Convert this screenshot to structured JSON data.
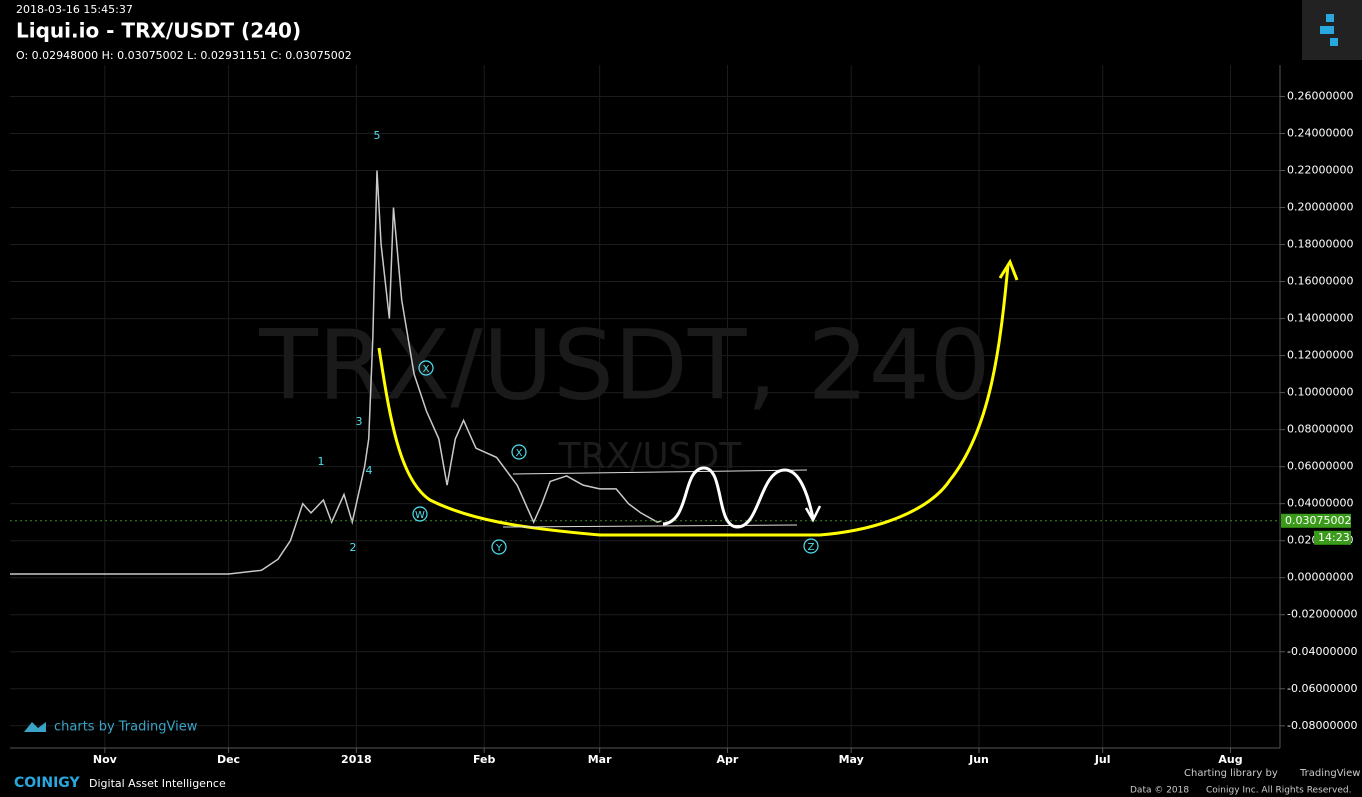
{
  "header": {
    "timestamp": "2018-03-16 15:45:37",
    "title": "Liqui.io - TRX/USDT (240)",
    "ohlc": "O: 0.02948000 H: 0.03075002 L: 0.02931151 C: 0.03075002"
  },
  "watermark": {
    "main": "TRX/USDT, 240",
    "sub": "TRX/USDT"
  },
  "chart_data": {
    "type": "line",
    "x": [
      -23,
      -10,
      0,
      10,
      20,
      30,
      38,
      42,
      45,
      48,
      50,
      53,
      55,
      58,
      60,
      62,
      63,
      64,
      65,
      66,
      67,
      68,
      69,
      70,
      72,
      75,
      78,
      81,
      83,
      85,
      87,
      90,
      95,
      100,
      104,
      106,
      108,
      112,
      116,
      120,
      124,
      127,
      130,
      134,
      135
    ],
    "series": [
      {
        "name": "TRX/USDT",
        "color": "#c9c9c9",
        "values": [
          0.002,
          0.002,
          0.002,
          0.002,
          0.002,
          0.002,
          0.004,
          0.01,
          0.02,
          0.04,
          0.035,
          0.042,
          0.03,
          0.045,
          0.03,
          0.05,
          0.06,
          0.075,
          0.13,
          0.22,
          0.18,
          0.16,
          0.14,
          0.2,
          0.15,
          0.11,
          0.09,
          0.075,
          0.05,
          0.075,
          0.085,
          0.07,
          0.065,
          0.05,
          0.03,
          0.04,
          0.052,
          0.055,
          0.05,
          0.048,
          0.048,
          0.04,
          0.035,
          0.03,
          0.03075002
        ]
      }
    ],
    "xlim": [
      -23,
      285
    ],
    "xticks": [
      {
        "value": 0,
        "label": "Nov"
      },
      {
        "value": 30,
        "label": "Dec"
      },
      {
        "value": 61,
        "label": "2018"
      },
      {
        "value": 92,
        "label": "Feb"
      },
      {
        "value": 120,
        "label": "Mar"
      },
      {
        "value": 151,
        "label": "Apr"
      },
      {
        "value": 181,
        "label": "May"
      },
      {
        "value": 212,
        "label": "Jun"
      },
      {
        "value": 242,
        "label": "Jul"
      },
      {
        "value": 273,
        "label": "Aug"
      }
    ],
    "ylim": [
      -0.092,
      0.277
    ],
    "yticks": [
      {
        "value": -0.08,
        "label": "-0.08000000"
      },
      {
        "value": -0.06,
        "label": "-0.06000000"
      },
      {
        "value": -0.04,
        "label": "-0.04000000"
      },
      {
        "value": -0.02,
        "label": "-0.02000000"
      },
      {
        "value": 0,
        "label": "0.00000000"
      },
      {
        "value": 0.02,
        "label": "0.02000000"
      },
      {
        "value": 0.04,
        "label": "0.04000000"
      },
      {
        "value": 0.06,
        "label": "0.06000000"
      },
      {
        "value": 0.08,
        "label": "0.08000000"
      },
      {
        "value": 0.1,
        "label": "0.10000000"
      },
      {
        "value": 0.12,
        "label": "0.12000000"
      },
      {
        "value": 0.14,
        "label": "0.14000000"
      },
      {
        "value": 0.16,
        "label": "0.16000000"
      },
      {
        "value": 0.18,
        "label": "0.18000000"
      },
      {
        "value": 0.2,
        "label": "0.20000000"
      },
      {
        "value": 0.22,
        "label": "0.22000000"
      },
      {
        "value": 0.24,
        "label": "0.24000000"
      },
      {
        "value": 0.26,
        "label": "0.26000000"
      }
    ],
    "grid": true,
    "last_price": 0.03075002,
    "countdown": "14:23",
    "annotations": [
      "5",
      "3",
      "4",
      "1",
      "2",
      "X",
      "W",
      "Y",
      "X",
      "Z"
    ]
  },
  "footer": {
    "tv_credit": "charts by TradingView",
    "brand": "COINIGY",
    "tagline": "Digital Asset Intelligence",
    "library": "Charting library by",
    "library_name": "TradingView",
    "data": "Data © 2018",
    "rights": "Coinigy Inc. All Rights Reserved."
  }
}
